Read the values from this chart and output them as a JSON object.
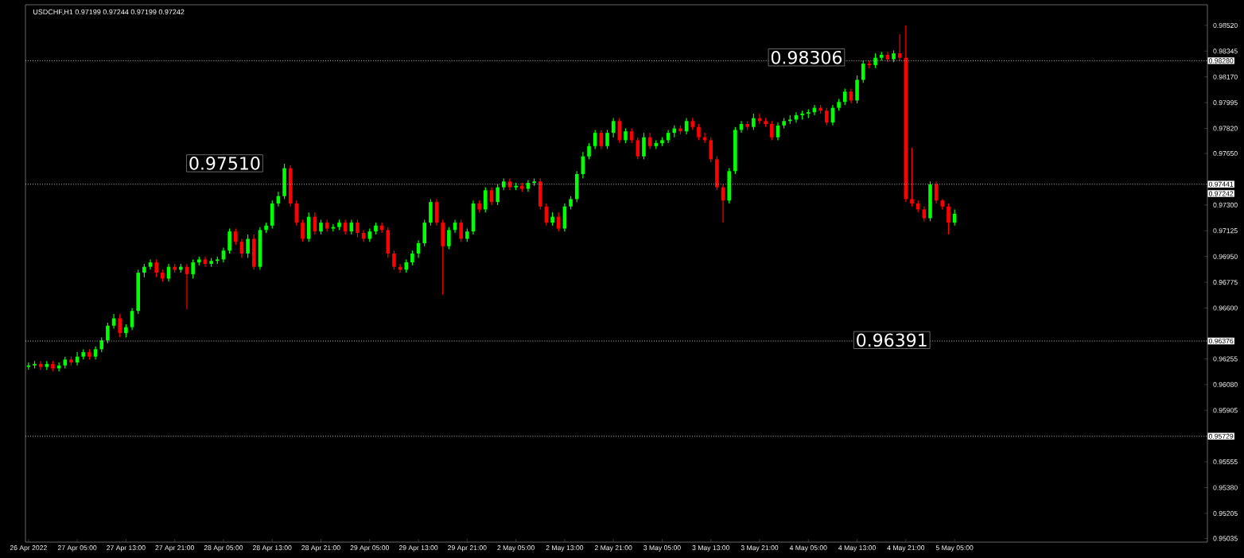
{
  "chart_data": {
    "type": "candlestick",
    "title": "USDCHF,H1  0.97199 0.97244 0.97199 0.97242",
    "categories": [
      "26 Apr 2022",
      null,
      null,
      null,
      null,
      null,
      null,
      null,
      "27 Apr 05:00",
      null,
      null,
      null,
      null,
      null,
      null,
      null,
      "27 Apr 13:00",
      null,
      null,
      null,
      null,
      null,
      null,
      null,
      "27 Apr 21:00",
      null,
      null,
      null,
      null,
      null,
      null,
      null,
      "28 Apr 05:00",
      null,
      null,
      null,
      null,
      null,
      null,
      null,
      "28 Apr 13:00",
      null,
      null,
      null,
      null,
      null,
      null,
      null,
      "28 Apr 21:00",
      null,
      null,
      null,
      null,
      null,
      null,
      null,
      "29 Apr 05:00",
      null,
      null,
      null,
      null,
      null,
      null,
      null,
      "29 Apr 13:00",
      null,
      null,
      null,
      null,
      null,
      null,
      null,
      "29 Apr 21:00",
      null,
      null,
      null,
      null,
      null,
      null,
      null,
      "2 May 05:00",
      null,
      null,
      null,
      null,
      null,
      null,
      null,
      "2 May 13:00",
      null,
      null,
      null,
      null,
      null,
      null,
      null,
      "2 May 21:00",
      null,
      null,
      null,
      null,
      null,
      null,
      null,
      "3 May 05:00",
      null,
      null,
      null,
      null,
      null,
      null,
      null,
      "3 May 13:00",
      null,
      null,
      null,
      null,
      null,
      null,
      null,
      "3 May 21:00",
      null,
      null,
      null,
      null,
      null,
      null,
      null,
      "4 May 05:00",
      null,
      null,
      null,
      null,
      null,
      null,
      null,
      "4 May 13:00",
      null,
      null,
      null,
      null,
      null,
      null,
      null,
      "4 May 21:00",
      null,
      null,
      null,
      null,
      null,
      null,
      null,
      "5 May 05:00",
      null,
      null,
      null,
      null,
      null,
      null,
      null,
      null,
      null,
      null,
      null,
      null,
      null,
      null,
      null,
      null,
      null,
      null,
      null,
      null,
      null,
      null,
      null,
      null,
      null,
      null,
      null,
      null,
      null,
      null,
      null,
      null,
      null,
      null,
      null,
      null,
      null,
      null,
      null,
      null,
      null
    ],
    "ohlc": [
      [
        0.962,
        0.9623,
        0.9618,
        0.9621
      ],
      [
        0.9621,
        0.9624,
        0.9619,
        0.9622
      ],
      [
        0.9622,
        0.9624,
        0.9618,
        0.962
      ],
      [
        0.962,
        0.9624,
        0.9618,
        0.9622
      ],
      [
        0.9622,
        0.9624,
        0.9617,
        0.9619
      ],
      [
        0.9619,
        0.9623,
        0.9617,
        0.9621
      ],
      [
        0.9621,
        0.9627,
        0.9619,
        0.9625
      ],
      [
        0.9625,
        0.9627,
        0.9621,
        0.9623
      ],
      [
        0.9623,
        0.963,
        0.9621,
        0.9627
      ],
      [
        0.9627,
        0.9632,
        0.9625,
        0.963
      ],
      [
        0.963,
        0.9632,
        0.9625,
        0.9627
      ],
      [
        0.9627,
        0.9634,
        0.9625,
        0.9632
      ],
      [
        0.9632,
        0.964,
        0.963,
        0.9638
      ],
      [
        0.9638,
        0.965,
        0.9636,
        0.9648
      ],
      [
        0.9648,
        0.9656,
        0.9646,
        0.9653
      ],
      [
        0.9653,
        0.9656,
        0.964,
        0.9643
      ],
      [
        0.9643,
        0.9649,
        0.964,
        0.9647
      ],
      [
        0.9647,
        0.966,
        0.9645,
        0.9658
      ],
      [
        0.9658,
        0.9686,
        0.9656,
        0.9684
      ],
      [
        0.9684,
        0.969,
        0.9681,
        0.9688
      ],
      [
        0.9688,
        0.9693,
        0.9686,
        0.9691
      ],
      [
        0.9691,
        0.9693,
        0.9681,
        0.9684
      ],
      [
        0.9684,
        0.9686,
        0.9678,
        0.968
      ],
      [
        0.968,
        0.969,
        0.9678,
        0.9688
      ],
      [
        0.9688,
        0.969,
        0.9684,
        0.9686
      ],
      [
        0.9686,
        0.969,
        0.9684,
        0.9688
      ],
      [
        0.9688,
        0.969,
        0.9659,
        0.9683
      ],
      [
        0.9683,
        0.9693,
        0.968,
        0.9691
      ],
      [
        0.9691,
        0.9695,
        0.9689,
        0.9693
      ],
      [
        0.9693,
        0.9695,
        0.9688,
        0.969
      ],
      [
        0.969,
        0.9694,
        0.9688,
        0.9692
      ],
      [
        0.9692,
        0.9695,
        0.969,
        0.9693
      ],
      [
        0.9693,
        0.9701,
        0.9691,
        0.9699
      ],
      [
        0.9699,
        0.9714,
        0.9697,
        0.9712
      ],
      [
        0.9712,
        0.9714,
        0.9703,
        0.9705
      ],
      [
        0.9705,
        0.9707,
        0.9694,
        0.9697
      ],
      [
        0.9697,
        0.971,
        0.9694,
        0.9707
      ],
      [
        0.9707,
        0.971,
        0.9686,
        0.9688
      ],
      [
        0.9688,
        0.9715,
        0.9686,
        0.9713
      ],
      [
        0.9713,
        0.9718,
        0.9711,
        0.9716
      ],
      [
        0.9716,
        0.9733,
        0.9714,
        0.9731
      ],
      [
        0.9731,
        0.9739,
        0.9729,
        0.9736
      ],
      [
        0.9736,
        0.9758,
        0.9734,
        0.9755
      ],
      [
        0.9755,
        0.9757,
        0.9729,
        0.9731
      ],
      [
        0.9731,
        0.9733,
        0.9716,
        0.9718
      ],
      [
        0.9718,
        0.972,
        0.9705,
        0.9707
      ],
      [
        0.9707,
        0.9725,
        0.9705,
        0.9722
      ],
      [
        0.9722,
        0.9725,
        0.971,
        0.9712
      ],
      [
        0.9712,
        0.972,
        0.971,
        0.9718
      ],
      [
        0.9718,
        0.972,
        0.9712,
        0.9714
      ],
      [
        0.9714,
        0.9717,
        0.9712,
        0.9715
      ],
      [
        0.9715,
        0.972,
        0.9713,
        0.9718
      ],
      [
        0.9718,
        0.972,
        0.971,
        0.9712
      ],
      [
        0.9712,
        0.972,
        0.971,
        0.9718
      ],
      [
        0.9718,
        0.972,
        0.9708,
        0.9711
      ],
      [
        0.9711,
        0.9713,
        0.9705,
        0.9707
      ],
      [
        0.9707,
        0.9714,
        0.9705,
        0.9712
      ],
      [
        0.9712,
        0.9718,
        0.971,
        0.9716
      ],
      [
        0.9716,
        0.9718,
        0.9711,
        0.9713
      ],
      [
        0.9713,
        0.9715,
        0.9694,
        0.9697
      ],
      [
        0.9697,
        0.9699,
        0.9686,
        0.9688
      ],
      [
        0.9688,
        0.969,
        0.9684,
        0.9686
      ],
      [
        0.9686,
        0.9693,
        0.9684,
        0.9691
      ],
      [
        0.9691,
        0.9699,
        0.9689,
        0.9697
      ],
      [
        0.9697,
        0.9706,
        0.9694,
        0.9704
      ],
      [
        0.9704,
        0.972,
        0.9702,
        0.9718
      ],
      [
        0.9718,
        0.9734,
        0.9716,
        0.9732
      ],
      [
        0.9732,
        0.9734,
        0.9716,
        0.9718
      ],
      [
        0.9718,
        0.972,
        0.9669,
        0.9702
      ],
      [
        0.9702,
        0.9715,
        0.97,
        0.9713
      ],
      [
        0.9713,
        0.972,
        0.9711,
        0.9718
      ],
      [
        0.9718,
        0.972,
        0.9705,
        0.9707
      ],
      [
        0.9707,
        0.9714,
        0.9705,
        0.9712
      ],
      [
        0.9712,
        0.9733,
        0.971,
        0.9731
      ],
      [
        0.9731,
        0.9733,
        0.9725,
        0.9727
      ],
      [
        0.9727,
        0.9742,
        0.9725,
        0.974
      ],
      [
        0.974,
        0.9742,
        0.973,
        0.9732
      ],
      [
        0.9732,
        0.9744,
        0.973,
        0.9742
      ],
      [
        0.9742,
        0.9748,
        0.974,
        0.9746
      ],
      [
        0.9746,
        0.9748,
        0.974,
        0.9742
      ],
      [
        0.9742,
        0.9745,
        0.974,
        0.9743
      ],
      [
        0.9743,
        0.9745,
        0.9739,
        0.9741
      ],
      [
        0.9741,
        0.9747,
        0.9739,
        0.9745
      ],
      [
        0.9745,
        0.9748,
        0.9743,
        0.9746
      ],
      [
        0.9746,
        0.9748,
        0.9727,
        0.9729
      ],
      [
        0.9729,
        0.9731,
        0.9716,
        0.9718
      ],
      [
        0.9718,
        0.9725,
        0.9716,
        0.9722
      ],
      [
        0.9722,
        0.9725,
        0.9712,
        0.9714
      ],
      [
        0.9714,
        0.9731,
        0.9712,
        0.9729
      ],
      [
        0.9729,
        0.9736,
        0.9727,
        0.9734
      ],
      [
        0.9734,
        0.9753,
        0.9732,
        0.9751
      ],
      [
        0.9751,
        0.9766,
        0.9748,
        0.9763
      ],
      [
        0.9763,
        0.9772,
        0.9761,
        0.977
      ],
      [
        0.977,
        0.9781,
        0.9768,
        0.9779
      ],
      [
        0.9779,
        0.9781,
        0.9768,
        0.977
      ],
      [
        0.977,
        0.9781,
        0.9768,
        0.9779
      ],
      [
        0.9779,
        0.9789,
        0.9776,
        0.9787
      ],
      [
        0.9787,
        0.9789,
        0.9772,
        0.9774
      ],
      [
        0.9774,
        0.9782,
        0.9772,
        0.978
      ],
      [
        0.978,
        0.9782,
        0.9772,
        0.9774
      ],
      [
        0.9774,
        0.9776,
        0.9761,
        0.9763
      ],
      [
        0.9763,
        0.9779,
        0.9761,
        0.9776
      ],
      [
        0.9776,
        0.9779,
        0.9768,
        0.977
      ],
      [
        0.977,
        0.9774,
        0.9768,
        0.9772
      ],
      [
        0.9772,
        0.9776,
        0.977,
        0.9774
      ],
      [
        0.9774,
        0.9781,
        0.9772,
        0.9779
      ],
      [
        0.9779,
        0.9784,
        0.9776,
        0.9782
      ],
      [
        0.9782,
        0.9784,
        0.9778,
        0.978
      ],
      [
        0.978,
        0.9789,
        0.9778,
        0.9787
      ],
      [
        0.9787,
        0.9789,
        0.9781,
        0.9783
      ],
      [
        0.9783,
        0.9785,
        0.9774,
        0.9776
      ],
      [
        0.9776,
        0.9779,
        0.9772,
        0.9774
      ],
      [
        0.9774,
        0.9776,
        0.9759,
        0.9761
      ],
      [
        0.9761,
        0.9763,
        0.974,
        0.9742
      ],
      [
        0.9742,
        0.9744,
        0.9718,
        0.9733
      ],
      [
        0.9733,
        0.9755,
        0.9731,
        0.9753
      ],
      [
        0.9753,
        0.9783,
        0.9751,
        0.9781
      ],
      [
        0.9781,
        0.9787,
        0.9779,
        0.9785
      ],
      [
        0.9785,
        0.9787,
        0.9781,
        0.9783
      ],
      [
        0.9783,
        0.9792,
        0.9781,
        0.9789
      ],
      [
        0.9789,
        0.9792,
        0.9785,
        0.9787
      ],
      [
        0.9787,
        0.9789,
        0.9783,
        0.9785
      ],
      [
        0.9785,
        0.9787,
        0.9774,
        0.9776
      ],
      [
        0.9776,
        0.9786,
        0.9774,
        0.9784
      ],
      [
        0.9784,
        0.9789,
        0.9782,
        0.9787
      ],
      [
        0.9787,
        0.9791,
        0.9785,
        0.9788
      ],
      [
        0.9788,
        0.9793,
        0.9786,
        0.9791
      ],
      [
        0.9791,
        0.9794,
        0.9788,
        0.9792
      ],
      [
        0.9792,
        0.9795,
        0.9789,
        0.9793
      ],
      [
        0.9793,
        0.9798,
        0.9791,
        0.9796
      ],
      [
        0.9796,
        0.9798,
        0.9792,
        0.9794
      ],
      [
        0.9794,
        0.9796,
        0.9784,
        0.9786
      ],
      [
        0.9786,
        0.9798,
        0.9784,
        0.9796
      ],
      [
        0.9796,
        0.9802,
        0.9794,
        0.98
      ],
      [
        0.98,
        0.9809,
        0.9798,
        0.9807
      ],
      [
        0.9807,
        0.9809,
        0.9799,
        0.9801
      ],
      [
        0.9801,
        0.9818,
        0.9799,
        0.9815
      ],
      [
        0.9815,
        0.9828,
        0.9813,
        0.9826
      ],
      [
        0.9826,
        0.9828,
        0.9823,
        0.9825
      ],
      [
        0.9825,
        0.9833,
        0.9823,
        0.983
      ],
      [
        0.983,
        0.9834,
        0.9828,
        0.9832
      ],
      [
        0.9832,
        0.9834,
        0.9827,
        0.9829
      ],
      [
        0.9829,
        0.9835,
        0.9827,
        0.9833
      ],
      [
        0.9833,
        0.9846,
        0.9828,
        0.983
      ],
      [
        0.983,
        0.9852,
        0.9732,
        0.9734
      ],
      [
        0.9734,
        0.9769,
        0.9729,
        0.9731
      ],
      [
        0.9731,
        0.9733,
        0.9725,
        0.9727
      ],
      [
        0.9727,
        0.9729,
        0.9719,
        0.9721
      ],
      [
        0.9721,
        0.9746,
        0.9719,
        0.9744
      ],
      [
        0.9744,
        0.9746,
        0.9731,
        0.9733
      ],
      [
        0.9733,
        0.9734,
        0.9727,
        0.9729
      ],
      [
        0.9729,
        0.9731,
        0.971,
        0.9718
      ],
      [
        0.9718,
        0.9727,
        0.9716,
        0.9724
      ],
      null,
      null,
      null,
      null,
      null,
      null,
      null,
      null,
      null,
      null,
      null,
      null,
      null,
      null,
      null,
      null,
      null,
      null,
      null,
      null,
      null,
      null,
      null,
      null,
      null,
      null,
      null,
      null,
      null,
      null,
      null,
      null,
      null,
      null,
      null,
      null,
      null,
      null,
      null,
      null,
      null
    ],
    "colors": [
      "#00ff00",
      "#00ff00",
      "#ff0000",
      "#00ff00",
      "#ff0000",
      "#00ff00",
      "#00ff00",
      "#ff0000",
      "#00ff00",
      "#00ff00",
      "#ff0000",
      "#00ff00",
      "#00ff00",
      "#00ff00",
      "#00ff00",
      "#ff0000",
      "#00ff00",
      "#00ff00",
      "#00ff00",
      "#00ff00",
      "#00ff00",
      "#ff0000",
      "#ff0000",
      "#00ff00",
      "#ff0000",
      "#00ff00",
      "#ff0000",
      "#00ff00",
      "#00ff00",
      "#ff0000",
      "#00ff00",
      "#00ff00",
      "#00ff00",
      "#00ff00",
      "#ff0000",
      "#ff0000",
      "#00ff00",
      "#ff0000",
      "#00ff00",
      "#00ff00",
      "#00ff00",
      "#00ff00",
      "#00ff00",
      "#ff0000",
      "#ff0000",
      "#ff0000",
      "#00ff00",
      "#ff0000",
      "#00ff00",
      "#ff0000",
      "#00ff00",
      "#00ff00",
      "#ff0000",
      "#00ff00",
      "#ff0000",
      "#ff0000",
      "#00ff00",
      "#00ff00",
      "#ff0000",
      "#ff0000",
      "#ff0000",
      "#ff0000",
      "#00ff00",
      "#00ff00",
      "#00ff00",
      "#00ff00",
      "#00ff00",
      "#ff0000",
      "#ff0000",
      "#00ff00",
      "#00ff00",
      "#ff0000",
      "#00ff00",
      "#00ff00",
      "#ff0000",
      "#00ff00",
      "#ff0000",
      "#00ff00",
      "#00ff00",
      "#ff0000",
      "#00ff00",
      "#ff0000",
      "#00ff00",
      "#00ff00",
      "#ff0000",
      "#ff0000",
      "#00ff00",
      "#ff0000",
      "#00ff00",
      "#00ff00",
      "#00ff00",
      "#00ff00",
      "#00ff00",
      "#00ff00",
      "#ff0000",
      "#00ff00",
      "#00ff00",
      "#ff0000",
      "#00ff00",
      "#ff0000",
      "#ff0000",
      "#00ff00",
      "#ff0000",
      "#00ff00",
      "#00ff00",
      "#00ff00",
      "#00ff00",
      "#ff0000",
      "#00ff00",
      "#ff0000",
      "#ff0000",
      "#ff0000",
      "#ff0000",
      "#ff0000",
      "#ff0000",
      "#00ff00",
      "#00ff00",
      "#00ff00",
      "#ff0000",
      "#00ff00",
      "#ff0000",
      "#ff0000",
      "#ff0000",
      "#00ff00",
      "#00ff00",
      "#00ff00",
      "#00ff00",
      "#00ff00",
      "#00ff00",
      "#00ff00",
      "#ff0000",
      "#ff0000",
      "#00ff00",
      "#00ff00",
      "#00ff00",
      "#ff0000",
      "#00ff00",
      "#00ff00",
      "#ff0000",
      "#00ff00",
      "#00ff00",
      "#ff0000",
      "#00ff00",
      "#ff0000",
      "#ff0000",
      "#ff0000",
      "#ff0000",
      "#ff0000",
      "#00ff00",
      "#ff0000",
      "#ff0000",
      "#ff0000",
      "#00ff00",
      null,
      null,
      null,
      null,
      null,
      null,
      null,
      null,
      null,
      null,
      null,
      null,
      null,
      null,
      null,
      null,
      null,
      null,
      null,
      null,
      null,
      null,
      null,
      null,
      null,
      null,
      null,
      null,
      null,
      null,
      null,
      null,
      null,
      null,
      null,
      null,
      null,
      null,
      null,
      null,
      null
    ],
    "ylim": [
      0.9501,
      0.9866
    ],
    "yticks": [
      {
        "value": 0.9852,
        "label": "0.98520"
      },
      0.98345,
      {
        "value": 0.9817,
        "label": "0.98170"
      },
      0.97995,
      {
        "value": 0.9782,
        "label": "0.97820"
      },
      {
        "value": 0.9765,
        "label": "0.97650"
      },
      {
        "value": 0.973,
        "label": "0.97300"
      },
      0.97125,
      {
        "value": 0.9695,
        "label": "0.96950"
      },
      0.96775,
      {
        "value": 0.966,
        "label": "0.96600"
      },
      0.96255,
      {
        "value": 0.9608,
        "label": "0.96080"
      },
      0.95905,
      0.95555,
      {
        "value": 0.9538,
        "label": "0.95380"
      },
      0.95205,
      0.95035
    ],
    "ref_lines": [
      {
        "axis": "y",
        "value": 0.9828,
        "label": "0.98280",
        "color": "#c0c0c0",
        "line_style": "dotted"
      },
      {
        "axis": "y",
        "value": 0.97441,
        "label": "0.97441",
        "color": "#c0c0c0",
        "line_style": "dotted"
      },
      {
        "axis": "y",
        "value": 0.96376,
        "label": "0.96376",
        "color": "#c0c0c0",
        "line_style": "dotted"
      },
      {
        "axis": "y",
        "value": 0.95729,
        "label": "0.95729",
        "color": "#c0c0c0",
        "line_style": "dotted"
      }
    ],
    "annotations": [
      "0.97510",
      "0.98306",
      "0.96391",
      "0.97242"
    ]
  }
}
